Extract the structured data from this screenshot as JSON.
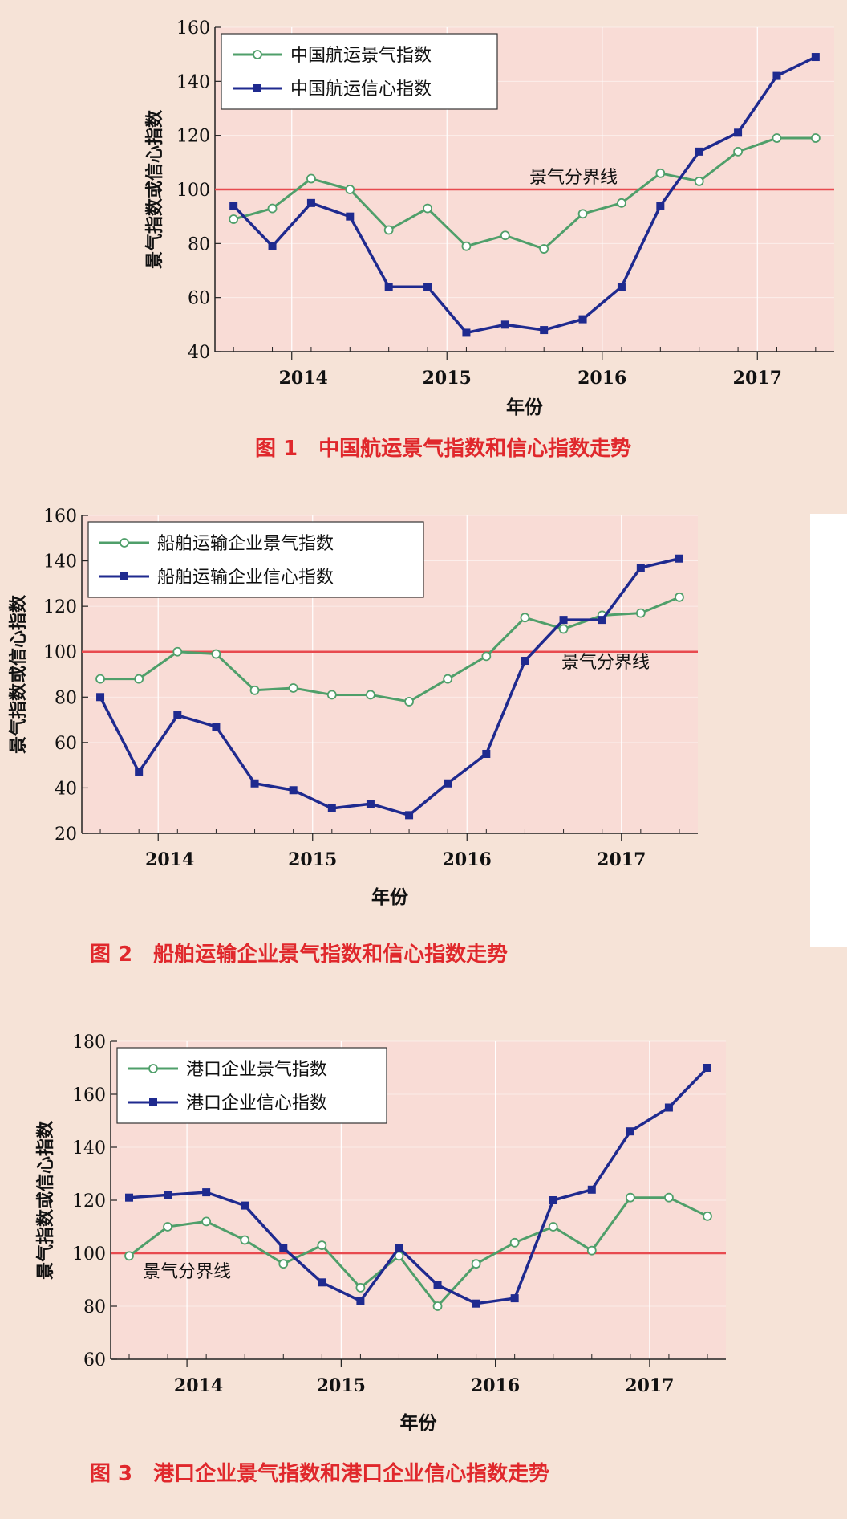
{
  "colors": {
    "page_bg": "#f6e3d7",
    "plot_bg": "#f9dcd6",
    "grid": "#ffffff",
    "threshold": "#e84a4f",
    "green": "#4f9f6a",
    "blue": "#1f2a8f",
    "caption": "#e0282c"
  },
  "chart_data": [
    {
      "type": "line",
      "caption": "图 1　中国航运景气指数和信心指数走势",
      "xlabel": "年份",
      "ylabel": "景气指数或信心指数",
      "ylim": [
        40,
        160
      ],
      "yticks": [
        40,
        60,
        80,
        100,
        120,
        140,
        160
      ],
      "xtick_labels": [
        "2014",
        "2015",
        "2016",
        "2017"
      ],
      "legend_position": "top-left",
      "threshold": {
        "value": 100,
        "label": "景气分界线"
      },
      "series": [
        {
          "name": "中国航运景气指数",
          "marker": "open-circle",
          "color": "green",
          "values": [
            89,
            93,
            104,
            100,
            85,
            93,
            79,
            83,
            78,
            91,
            95,
            106,
            103,
            114,
            119,
            119
          ]
        },
        {
          "name": "中国航运信心指数",
          "marker": "filled-square",
          "color": "blue",
          "values": [
            94,
            79,
            95,
            90,
            64,
            64,
            47,
            50,
            48,
            52,
            64,
            94,
            114,
            121,
            142,
            149
          ]
        }
      ]
    },
    {
      "type": "line",
      "caption": "图 2　船舶运输企业景气指数和信心指数走势",
      "xlabel": "年份",
      "ylabel": "景气指数或信心指数",
      "ylim": [
        20,
        160
      ],
      "yticks": [
        20,
        40,
        60,
        80,
        100,
        120,
        140,
        160
      ],
      "xtick_labels": [
        "2014",
        "2015",
        "2016",
        "2017"
      ],
      "legend_position": "top-left",
      "threshold": {
        "value": 100,
        "label": "景气分界线"
      },
      "series": [
        {
          "name": "船舶运输企业景气指数",
          "marker": "open-circle",
          "color": "green",
          "values": [
            88,
            88,
            100,
            99,
            83,
            84,
            81,
            81,
            78,
            88,
            98,
            115,
            110,
            116,
            117,
            124
          ]
        },
        {
          "name": "船舶运输企业信心指数",
          "marker": "filled-square",
          "color": "blue",
          "values": [
            80,
            47,
            72,
            67,
            42,
            39,
            31,
            33,
            28,
            42,
            55,
            96,
            114,
            114,
            137,
            141
          ]
        }
      ]
    },
    {
      "type": "line",
      "caption": "图 3　港口企业景气指数和港口企业信心指数走势",
      "xlabel": "年份",
      "ylabel": "景气指数或信心指数",
      "ylim": [
        60,
        180
      ],
      "yticks": [
        60,
        80,
        100,
        120,
        140,
        160,
        180
      ],
      "xtick_labels": [
        "2014",
        "2015",
        "2016",
        "2017"
      ],
      "legend_position": "top-left",
      "threshold": {
        "value": 100,
        "label": "景气分界线"
      },
      "series": [
        {
          "name": "港口企业景气指数",
          "marker": "open-circle",
          "color": "green",
          "values": [
            99,
            110,
            112,
            105,
            96,
            103,
            87,
            99,
            80,
            96,
            104,
            110,
            101,
            121,
            121,
            114
          ]
        },
        {
          "name": "港口企业信心指数",
          "marker": "filled-square",
          "color": "blue",
          "values": [
            121,
            122,
            123,
            118,
            102,
            89,
            82,
            102,
            88,
            81,
            83,
            120,
            124,
            146,
            155,
            170
          ]
        }
      ]
    }
  ]
}
